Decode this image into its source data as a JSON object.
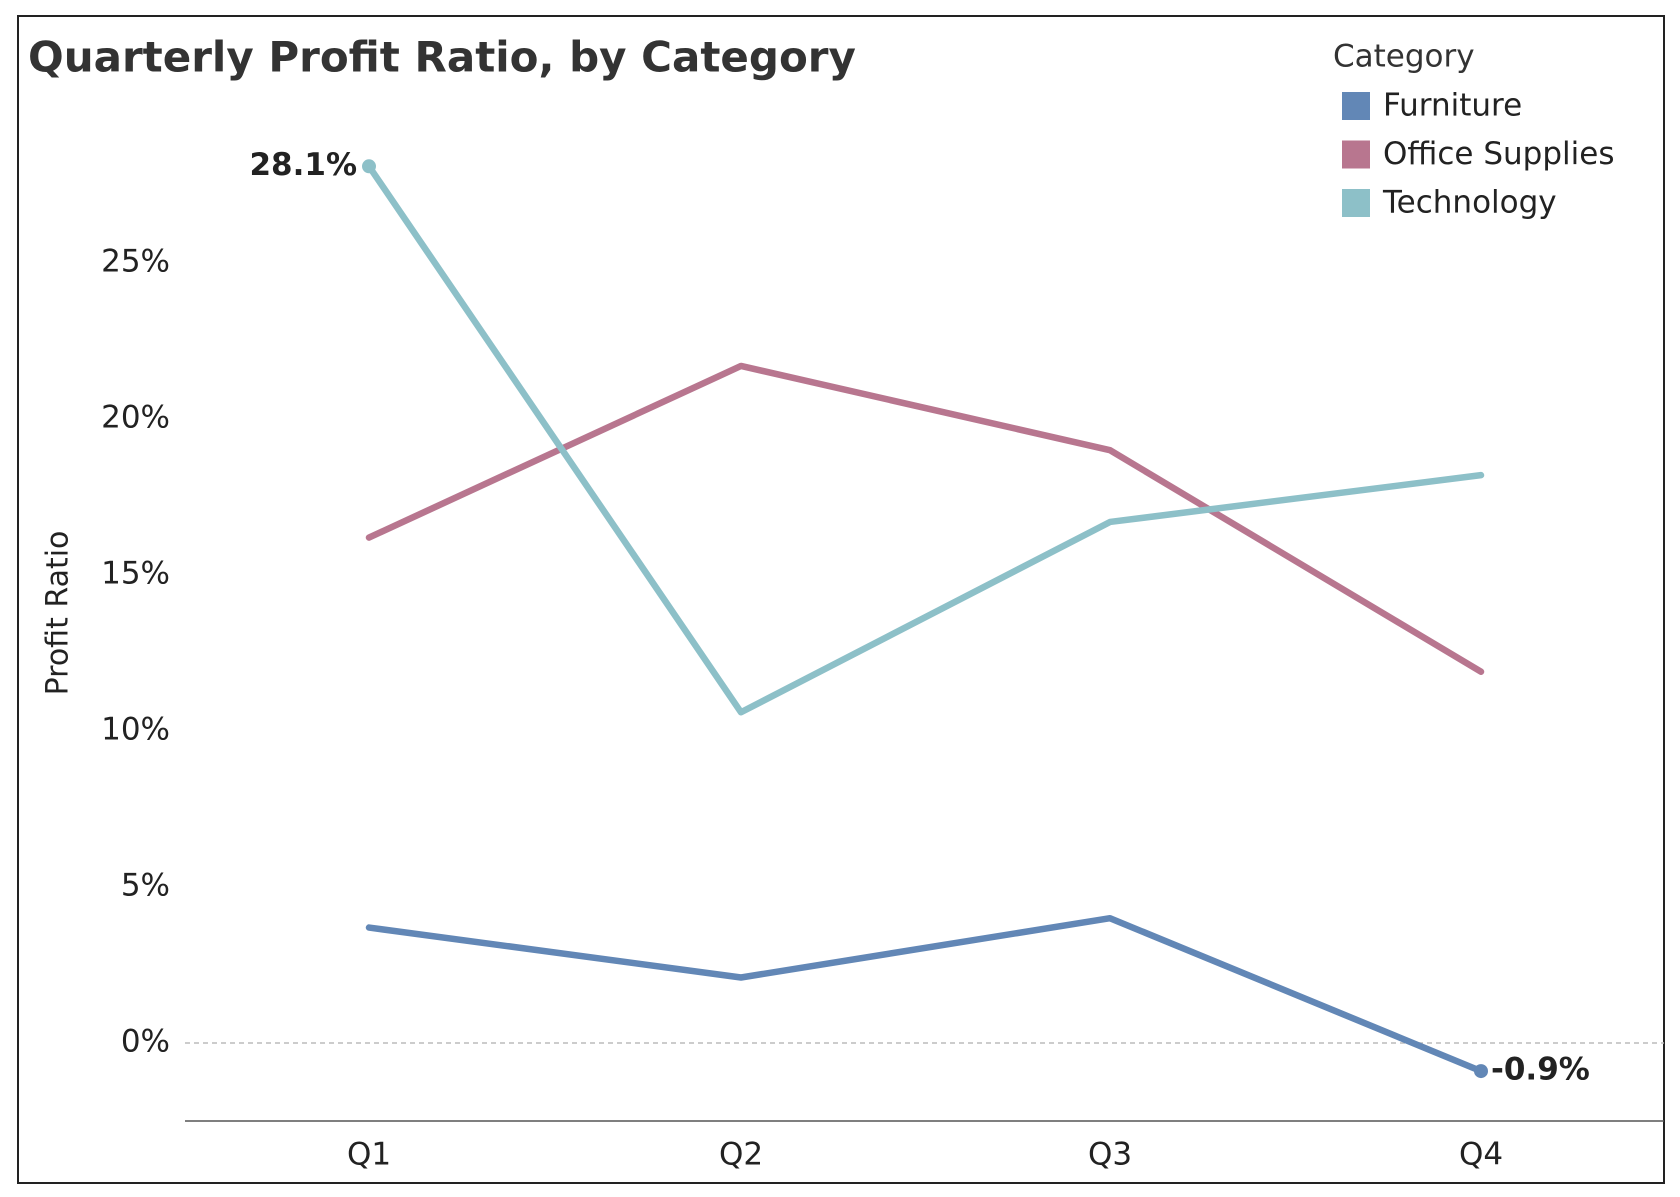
{
  "chart_data": {
    "type": "line",
    "title": "Quarterly Profit Ratio, by Category",
    "y_label": "Profit Ratio",
    "legend_title": "Category",
    "legend": "top-right",
    "categories": [
      "Q1",
      "Q2",
      "Q3",
      "Q4"
    ],
    "series": [
      {
        "name": "Furniture",
        "color": "#6287b6",
        "values": [
          3.7,
          2.1,
          4.0,
          -0.9
        ],
        "value_labels": [
          null,
          null,
          null,
          "-0.9%"
        ]
      },
      {
        "name": "Office Supplies",
        "color": "#b8768f",
        "values": [
          16.2,
          21.7,
          19.0,
          11.9
        ],
        "value_labels": [
          null,
          null,
          null,
          null
        ]
      },
      {
        "name": "Technology",
        "color": "#8dc0c8",
        "values": [
          28.1,
          10.6,
          16.7,
          18.2
        ],
        "value_labels": [
          "28.1%",
          null,
          null,
          null
        ]
      }
    ],
    "ylim": [
      -2.5,
      30
    ],
    "yticks": [
      {
        "value": 0,
        "label": "0%"
      },
      {
        "value": 5,
        "label": "5%"
      },
      {
        "value": 10,
        "label": "10%"
      },
      {
        "value": 15,
        "label": "15%"
      },
      {
        "value": 20,
        "label": "20%"
      },
      {
        "value": 25,
        "label": "25%"
      }
    ],
    "zero_line": true
  }
}
